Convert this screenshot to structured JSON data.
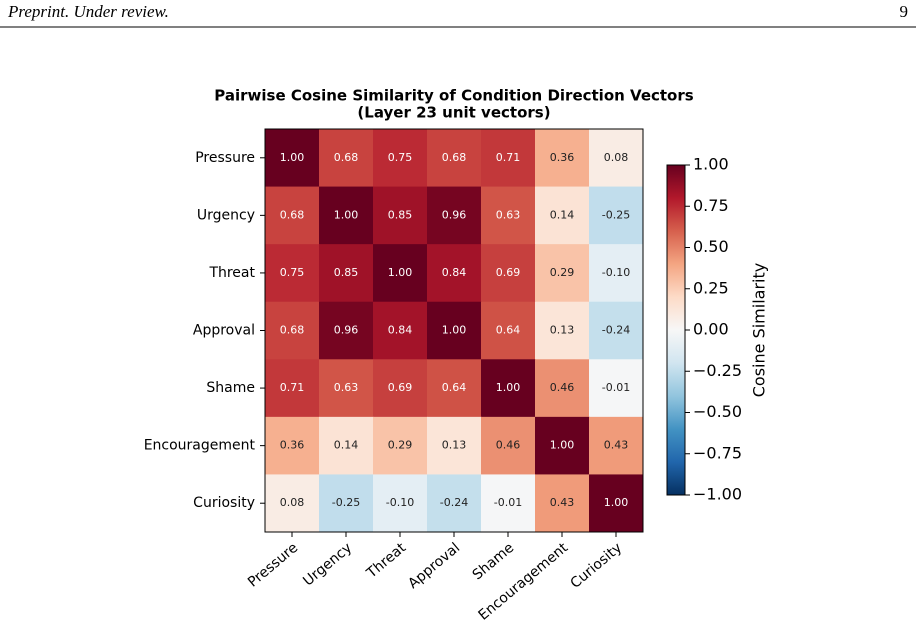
{
  "header": {
    "left": "Preprint. Under review.",
    "page_number": "9"
  },
  "chart_data": {
    "type": "heatmap",
    "title": "Pairwise Cosine Similarity of Condition Direction Vectors",
    "subtitle": "(Layer 23 unit vectors)",
    "categories": [
      "Pressure",
      "Urgency",
      "Threat",
      "Approval",
      "Shame",
      "Encouragement",
      "Curiosity"
    ],
    "values": [
      [
        1.0,
        0.68,
        0.75,
        0.68,
        0.71,
        0.36,
        0.08
      ],
      [
        0.68,
        1.0,
        0.85,
        0.96,
        0.63,
        0.14,
        -0.25
      ],
      [
        0.75,
        0.85,
        1.0,
        0.84,
        0.69,
        0.29,
        -0.1
      ],
      [
        0.68,
        0.96,
        0.84,
        1.0,
        0.64,
        0.13,
        -0.24
      ],
      [
        0.71,
        0.63,
        0.69,
        0.64,
        1.0,
        0.46,
        -0.01
      ],
      [
        0.36,
        0.14,
        0.29,
        0.13,
        0.46,
        1.0,
        0.43
      ],
      [
        0.08,
        -0.25,
        -0.1,
        -0.24,
        -0.01,
        0.43,
        1.0
      ]
    ],
    "value_labels": [
      [
        "1.00",
        "0.68",
        "0.75",
        "0.68",
        "0.71",
        "0.36",
        "0.08"
      ],
      [
        "0.68",
        "1.00",
        "0.85",
        "0.96",
        "0.63",
        "0.14",
        "-0.25"
      ],
      [
        "0.75",
        "0.85",
        "1.00",
        "0.84",
        "0.69",
        "0.29",
        "-0.10"
      ],
      [
        "0.68",
        "0.96",
        "0.84",
        "1.00",
        "0.64",
        "0.13",
        "-0.24"
      ],
      [
        "0.71",
        "0.63",
        "0.69",
        "0.64",
        "1.00",
        "0.46",
        "-0.01"
      ],
      [
        "0.36",
        "0.14",
        "0.29",
        "0.13",
        "0.46",
        "1.00",
        "0.43"
      ],
      [
        "0.08",
        "-0.25",
        "-0.10",
        "-0.24",
        "-0.01",
        "0.43",
        "1.00"
      ]
    ],
    "colormap": "RdBu_r",
    "colorbar_label": "Cosine Similarity",
    "clim": [
      -1,
      1
    ],
    "cticks": [
      {
        "value": 1,
        "label": "1.00"
      },
      {
        "value": 0.75,
        "label": "0.75"
      },
      {
        "value": 0.5,
        "label": "0.50"
      },
      {
        "value": 0.25,
        "label": "0.25"
      },
      {
        "value": 0,
        "label": "0.00"
      },
      {
        "value": -0.25,
        "label": "−0.25"
      },
      {
        "value": -0.5,
        "label": "−0.50"
      },
      {
        "value": -0.75,
        "label": "−0.75"
      },
      {
        "value": -1,
        "label": "−1.00"
      }
    ]
  }
}
